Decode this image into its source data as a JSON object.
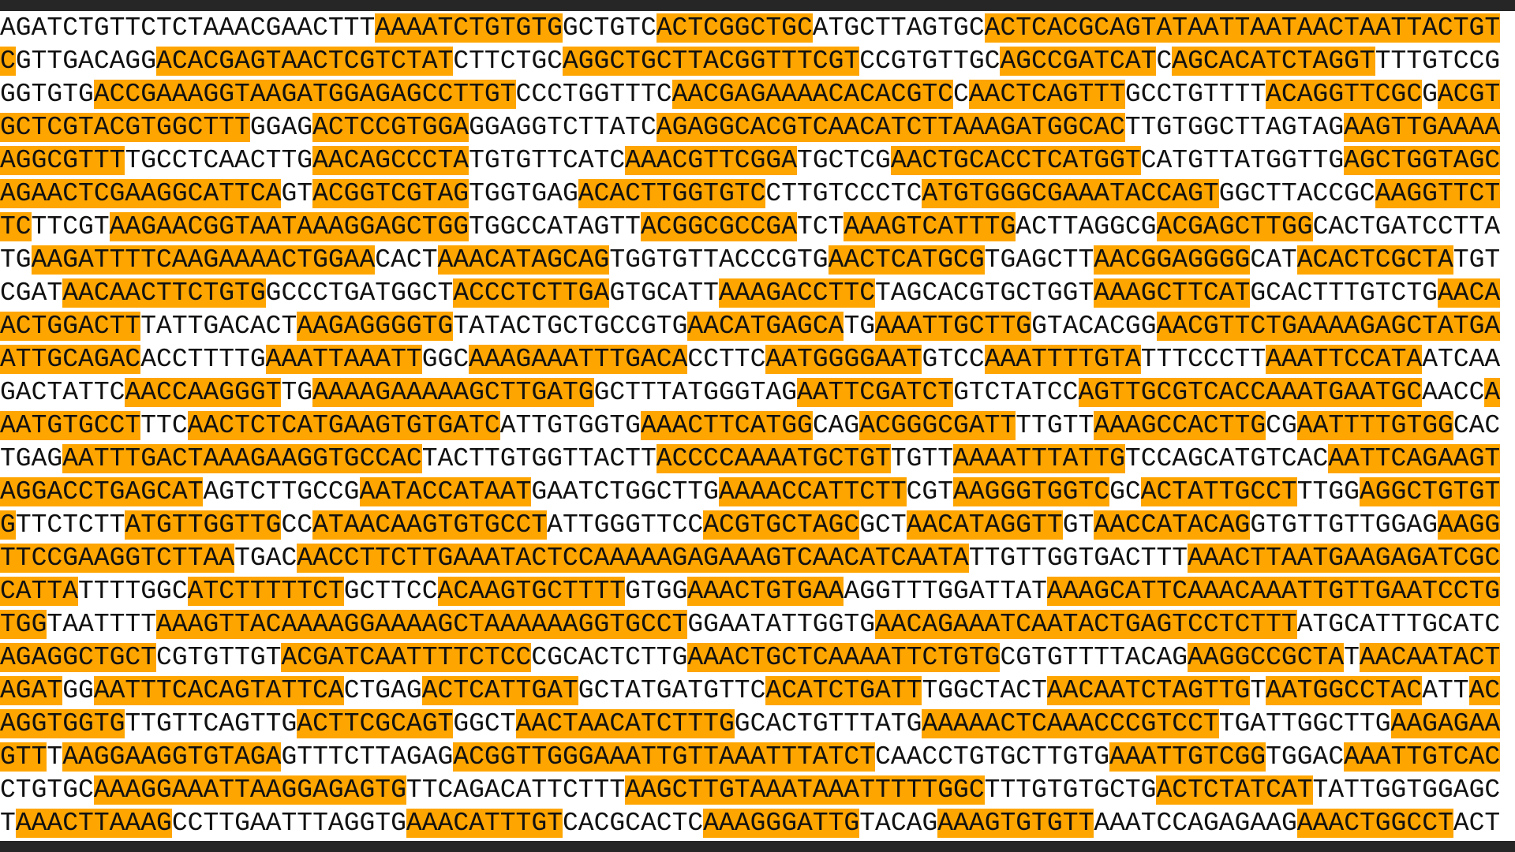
{
  "rows": [
    [
      {
        "text": "AGATCTGTTCTCTAAACGAACTTT",
        "hl": false
      },
      {
        "text": "AAAATCTGTGTG",
        "hl": true
      },
      {
        "text": "GCTGTC",
        "hl": false
      },
      {
        "text": "ACTCGGCTGC",
        "hl": true
      },
      {
        "text": "ATGCTTAGTGC",
        "hl": false
      },
      {
        "text": "ACTCACGCAGTATAATTAATAACTAATTACTGT",
        "hl": true
      }
    ],
    [
      {
        "text": "C",
        "hl": true
      },
      {
        "text": "GTTGACAGG",
        "hl": false
      },
      {
        "text": "ACACGAGTAACTCGTCTAT",
        "hl": true
      },
      {
        "text": "CTTCTGC",
        "hl": false
      },
      {
        "text": "AGGCTGCTTACGGTTTCGT",
        "hl": true
      },
      {
        "text": "CCGTGTTGC",
        "hl": false
      },
      {
        "text": "AGCCGATCAT",
        "hl": true
      },
      {
        "text": "C",
        "hl": false
      },
      {
        "text": "AGCACATCTAGGT",
        "hl": true
      },
      {
        "text": "TTTGTCCG",
        "hl": false
      }
    ],
    [
      {
        "text": "GGTGTG",
        "hl": false
      },
      {
        "text": "ACCGAAAGGTAAGATGGAGAGCCTTGT",
        "hl": true
      },
      {
        "text": "CCCTGGTTTC",
        "hl": false
      },
      {
        "text": "AACGAGAAAACACACGTC",
        "hl": true
      },
      {
        "text": "C",
        "hl": false
      },
      {
        "text": "AACTCAGTTT",
        "hl": true
      },
      {
        "text": "GCCTGTTTT",
        "hl": false
      },
      {
        "text": "ACAGGTTCGC",
        "hl": true
      },
      {
        "text": "G",
        "hl": false
      },
      {
        "text": "ACGT",
        "hl": true
      }
    ],
    [
      {
        "text": "GCTCGTACGTGGCTTT",
        "hl": true
      },
      {
        "text": "GGAG",
        "hl": false
      },
      {
        "text": "ACTCCGTGGA",
        "hl": true
      },
      {
        "text": "GGAGGTCTTATC",
        "hl": false
      },
      {
        "text": "AGAGGCACGTCAACATCTTAAAGATGGCAC",
        "hl": true
      },
      {
        "text": "TTGTGGCTTAGTAG",
        "hl": false
      },
      {
        "text": "AAGTTGAAAA",
        "hl": true
      }
    ],
    [
      {
        "text": "AGGCGTTT",
        "hl": true
      },
      {
        "text": "TGCCTCAACTTG",
        "hl": false
      },
      {
        "text": "AACAGCCCTA",
        "hl": true
      },
      {
        "text": "TGTGTTCATC",
        "hl": false
      },
      {
        "text": "AAACGTTCGGA",
        "hl": true
      },
      {
        "text": "TGCTCG",
        "hl": false
      },
      {
        "text": "AACTGCACCTCATGGT",
        "hl": true
      },
      {
        "text": "CATGTTATGGTTG",
        "hl": false
      },
      {
        "text": "AGCTGGTAGC",
        "hl": true
      }
    ],
    [
      {
        "text": "AGAACTCGAAGGCATTCA",
        "hl": true
      },
      {
        "text": "GT",
        "hl": false
      },
      {
        "text": "ACGGTCGTAG",
        "hl": true
      },
      {
        "text": "TGGTGAG",
        "hl": false
      },
      {
        "text": "ACACTTGGTGTC",
        "hl": true
      },
      {
        "text": "CTTGTCCCTC",
        "hl": false
      },
      {
        "text": "ATGTGGGCGAAATACCAGT",
        "hl": true
      },
      {
        "text": "GGCTTACCGC",
        "hl": false
      },
      {
        "text": "AAGGTTCT",
        "hl": true
      }
    ],
    [
      {
        "text": "TC",
        "hl": true
      },
      {
        "text": "TTCGT",
        "hl": false
      },
      {
        "text": "AAGAACGGTAATAAAGGAGCTGG",
        "hl": true
      },
      {
        "text": "TGGCCATAGTT",
        "hl": false
      },
      {
        "text": "ACGGCGCCGA",
        "hl": true
      },
      {
        "text": "TCT",
        "hl": false
      },
      {
        "text": "AAAGTCATTTG",
        "hl": true
      },
      {
        "text": "ACTTAGGCG",
        "hl": false
      },
      {
        "text": "ACGAGCTTGG",
        "hl": true
      },
      {
        "text": "CACTGATCCTTA",
        "hl": false
      }
    ],
    [
      {
        "text": "TG",
        "hl": false
      },
      {
        "text": "AAGATTTTCAAGAAAACTGGAA",
        "hl": true
      },
      {
        "text": "CACT",
        "hl": false
      },
      {
        "text": "AAACATAGCAG",
        "hl": true
      },
      {
        "text": "TGGTGTTACCCGTG",
        "hl": false
      },
      {
        "text": "AACTCATGCG",
        "hl": true
      },
      {
        "text": "TGAGCTT",
        "hl": false
      },
      {
        "text": "AACGGAGGGG",
        "hl": true
      },
      {
        "text": "CAT",
        "hl": false
      },
      {
        "text": "ACACTCGCTA",
        "hl": true
      },
      {
        "text": "TGT",
        "hl": false
      }
    ],
    [
      {
        "text": "CGAT",
        "hl": false
      },
      {
        "text": "AACAACTTCTGTG",
        "hl": true
      },
      {
        "text": "GCCCTGATGGCT",
        "hl": false
      },
      {
        "text": "ACCCTCTTGA",
        "hl": true
      },
      {
        "text": "GTGCATT",
        "hl": false
      },
      {
        "text": "AAAGACCTTC",
        "hl": true
      },
      {
        "text": "TAGCACGTGCTGGT",
        "hl": false
      },
      {
        "text": "AAAGCTTCAT",
        "hl": true
      },
      {
        "text": "GCACTTTGTCTG",
        "hl": false
      },
      {
        "text": "AACA",
        "hl": true
      }
    ],
    [
      {
        "text": "ACTGGACTT",
        "hl": true
      },
      {
        "text": "TATTGACACT",
        "hl": false
      },
      {
        "text": "AAGAGGGGTG",
        "hl": true
      },
      {
        "text": "TATACTGCTGCCGTG",
        "hl": false
      },
      {
        "text": "AACATGAGCA",
        "hl": true
      },
      {
        "text": "TG",
        "hl": false
      },
      {
        "text": "AAATTGCTTG",
        "hl": true
      },
      {
        "text": "GTACACGG",
        "hl": false
      },
      {
        "text": "AACGTTCTGAAAAGAGCTATGA",
        "hl": true
      }
    ],
    [
      {
        "text": "ATTGCAGAC",
        "hl": true
      },
      {
        "text": "ACCTTTTG",
        "hl": false
      },
      {
        "text": "AAATTAAATT",
        "hl": true
      },
      {
        "text": "GGC",
        "hl": false
      },
      {
        "text": "AAAGAAATTTGACA",
        "hl": true
      },
      {
        "text": "CCTTC",
        "hl": false
      },
      {
        "text": "AATGGGGAAT",
        "hl": true
      },
      {
        "text": "GTCC",
        "hl": false
      },
      {
        "text": "AAATTTTGTA",
        "hl": true
      },
      {
        "text": "TTTCCCTT",
        "hl": false
      },
      {
        "text": "AAATTCCATA",
        "hl": true
      },
      {
        "text": "ATCAA",
        "hl": false
      }
    ],
    [
      {
        "text": "GACTATTC",
        "hl": false
      },
      {
        "text": "AACCAAGGGT",
        "hl": true
      },
      {
        "text": "TG",
        "hl": false
      },
      {
        "text": "AAAAGAAAAAGCTTGATG",
        "hl": true
      },
      {
        "text": "GCTTTATGGGTAG",
        "hl": false
      },
      {
        "text": "AATTCGATCT",
        "hl": true
      },
      {
        "text": "GTCTATCC",
        "hl": false
      },
      {
        "text": "AGTTGCGTCACCAAATGAATGC",
        "hl": true
      },
      {
        "text": "AACC",
        "hl": false
      },
      {
        "text": "A",
        "hl": true
      }
    ],
    [
      {
        "text": "AATGTGCCT",
        "hl": true
      },
      {
        "text": "TTC",
        "hl": false
      },
      {
        "text": "AACTCTCATGAAGTGTGATC",
        "hl": true
      },
      {
        "text": "ATTGTGGTG",
        "hl": false
      },
      {
        "text": "AAACTTCATGG",
        "hl": true
      },
      {
        "text": "CAG",
        "hl": false
      },
      {
        "text": "ACGGGCGATT",
        "hl": true
      },
      {
        "text": "TTGTT",
        "hl": false
      },
      {
        "text": "AAAGCCACTTG",
        "hl": true
      },
      {
        "text": "CG",
        "hl": false
      },
      {
        "text": "AATTTTGTGG",
        "hl": true
      },
      {
        "text": "CAC",
        "hl": false
      }
    ],
    [
      {
        "text": "TGAG",
        "hl": false
      },
      {
        "text": "AATTTGACTAAAGAAGGTGCCAC",
        "hl": true
      },
      {
        "text": "TACTTGTGGTTACTT",
        "hl": false
      },
      {
        "text": "ACCCCAAAATGCTGT",
        "hl": true
      },
      {
        "text": "TGTT",
        "hl": false
      },
      {
        "text": "AAAATTTATTG",
        "hl": true
      },
      {
        "text": "TCCAGCATGTCAC",
        "hl": false
      },
      {
        "text": "AATTCAGAAGT",
        "hl": true
      }
    ],
    [
      {
        "text": "AGGACCTGAGCAT",
        "hl": true
      },
      {
        "text": "AGTCTTGCCG",
        "hl": false
      },
      {
        "text": "AATACCATAAT",
        "hl": true
      },
      {
        "text": "GAATCTGGCTTG",
        "hl": false
      },
      {
        "text": "AAAACCATTCTT",
        "hl": true
      },
      {
        "text": "CGT",
        "hl": false
      },
      {
        "text": "AAGGGTGGTC",
        "hl": true
      },
      {
        "text": "GC",
        "hl": false
      },
      {
        "text": "ACTATTGCCT",
        "hl": true
      },
      {
        "text": "TTGG",
        "hl": false
      },
      {
        "text": "AGGCTGTGT",
        "hl": true
      }
    ],
    [
      {
        "text": "G",
        "hl": true
      },
      {
        "text": "TTCTCTT",
        "hl": false
      },
      {
        "text": "ATGTTGGTTG",
        "hl": true
      },
      {
        "text": "CC",
        "hl": false
      },
      {
        "text": "ATAACAAGTGTGCCT",
        "hl": true
      },
      {
        "text": "ATTGGGTTCC",
        "hl": false
      },
      {
        "text": "ACGTGCTAGC",
        "hl": true
      },
      {
        "text": "GCT",
        "hl": false
      },
      {
        "text": "AACATAGGTT",
        "hl": true
      },
      {
        "text": "GT",
        "hl": false
      },
      {
        "text": "AACCATACAG",
        "hl": true
      },
      {
        "text": "GTGTTGTTGGAG",
        "hl": false
      },
      {
        "text": "AAGG",
        "hl": true
      }
    ],
    [
      {
        "text": "TTCCGAAGGTCTTAA",
        "hl": true
      },
      {
        "text": "TGAC",
        "hl": false
      },
      {
        "text": "AACCTTCTTGAAATACTCCAAAAAGAGAAAGTCAACATCAATA",
        "hl": true
      },
      {
        "text": "TTGTTGGTGACTTT",
        "hl": false
      },
      {
        "text": "AAACTTAATGAAGAGATCGC",
        "hl": true
      }
    ],
    [
      {
        "text": "CATTA",
        "hl": true
      },
      {
        "text": "TTTTGGC",
        "hl": false
      },
      {
        "text": "ATCTTTTTCT",
        "hl": true
      },
      {
        "text": "GCTTCC",
        "hl": false
      },
      {
        "text": "ACAAGTGCTTTT",
        "hl": true
      },
      {
        "text": "GTGG",
        "hl": false
      },
      {
        "text": "AAACTGTGAA",
        "hl": true
      },
      {
        "text": "AGGTTTGGATTAT",
        "hl": false
      },
      {
        "text": "AAAGCATTCAAACAAATTGTTGAATCCTG",
        "hl": true
      }
    ],
    [
      {
        "text": "TGG",
        "hl": true
      },
      {
        "text": "TAATTTT",
        "hl": false
      },
      {
        "text": "AAAGTTACAAAAGGAAAAGCTAAAAAAGGTGCCT",
        "hl": true
      },
      {
        "text": "GGAATATTGGTG",
        "hl": false
      },
      {
        "text": "AACAGAAATCAATACTGAGTCCTCTTT",
        "hl": true
      },
      {
        "text": "ATGCATTTGCATC",
        "hl": false
      }
    ],
    [
      {
        "text": "AGAGGCTGCT",
        "hl": true
      },
      {
        "text": "CGTGTTGT",
        "hl": false
      },
      {
        "text": "ACGATCAATTTTCTCC",
        "hl": true
      },
      {
        "text": "CGCACTCTTG",
        "hl": false
      },
      {
        "text": "AAACTGCTCAAAATTCTGTG",
        "hl": true
      },
      {
        "text": "CGTGTTTTACAG",
        "hl": false
      },
      {
        "text": "AAGGCCGCTA",
        "hl": true
      },
      {
        "text": "T",
        "hl": false
      },
      {
        "text": "AACAATACT",
        "hl": true
      }
    ],
    [
      {
        "text": "AGAT",
        "hl": true
      },
      {
        "text": "GG",
        "hl": false
      },
      {
        "text": "AATTTCACAGTATTCA",
        "hl": true
      },
      {
        "text": "CTGAG",
        "hl": false
      },
      {
        "text": "ACTCATTGAT",
        "hl": true
      },
      {
        "text": "GCTATGATGTTC",
        "hl": false
      },
      {
        "text": "ACATCTGATT",
        "hl": true
      },
      {
        "text": "TGGCTACT",
        "hl": false
      },
      {
        "text": "AACAATCTAGTTG",
        "hl": true
      },
      {
        "text": "T",
        "hl": false
      },
      {
        "text": "AATGGCCTAC",
        "hl": true
      },
      {
        "text": "ATT",
        "hl": false
      },
      {
        "text": "AC",
        "hl": true
      }
    ],
    [
      {
        "text": "AGGTGGTG",
        "hl": true
      },
      {
        "text": "TTGTTCAGTTG",
        "hl": false
      },
      {
        "text": "ACTTCGCAGT",
        "hl": true
      },
      {
        "text": "GGCT",
        "hl": false
      },
      {
        "text": "AACTAACATCTTTG",
        "hl": true
      },
      {
        "text": "GCACTGTTTATG",
        "hl": false
      },
      {
        "text": "AAAAACTCAAACCCGTCCT",
        "hl": true
      },
      {
        "text": "TGATTGGCTTG",
        "hl": false
      },
      {
        "text": "AAGAGAA",
        "hl": true
      }
    ],
    [
      {
        "text": "GTT",
        "hl": true
      },
      {
        "text": "T",
        "hl": false
      },
      {
        "text": "AAGGAAGGTGTAGA",
        "hl": true
      },
      {
        "text": "GTTTCTTAGAG",
        "hl": false
      },
      {
        "text": "ACGGTTGGGAAATTGTTAAATTTATCT",
        "hl": true
      },
      {
        "text": "CAACCTGTGCTTGTG",
        "hl": false
      },
      {
        "text": "AAATTGTCGG",
        "hl": true
      },
      {
        "text": "TGGAC",
        "hl": false
      },
      {
        "text": "AAATTGTCAC",
        "hl": true
      }
    ],
    [
      {
        "text": "CTGTGC",
        "hl": false
      },
      {
        "text": "AAAGGAAATTAAGGAGAGTG",
        "hl": true
      },
      {
        "text": "TTCAGACATTCTTT",
        "hl": false
      },
      {
        "text": "AAGCTTGTAAATAAATTTTTGGC",
        "hl": true
      },
      {
        "text": "TTTGTGTGCTG",
        "hl": false
      },
      {
        "text": "ACTCTATCAT",
        "hl": true
      },
      {
        "text": "TATTGGTGGAGC",
        "hl": false
      }
    ],
    [
      {
        "text": "T",
        "hl": false
      },
      {
        "text": "AAACTTAAAG",
        "hl": true
      },
      {
        "text": "CCTTGAATTTAGGTG",
        "hl": false
      },
      {
        "text": "AAACATTTGT",
        "hl": true
      },
      {
        "text": "CACGCACTC",
        "hl": false
      },
      {
        "text": "AAAGGGATTG",
        "hl": true
      },
      {
        "text": "TACAG",
        "hl": false
      },
      {
        "text": "AAAGTGTGTT",
        "hl": true
      },
      {
        "text": "AAATCCAGAGAAG",
        "hl": false
      },
      {
        "text": "AAACTGGCCT",
        "hl": true
      },
      {
        "text": "ACT",
        "hl": false
      }
    ]
  ]
}
